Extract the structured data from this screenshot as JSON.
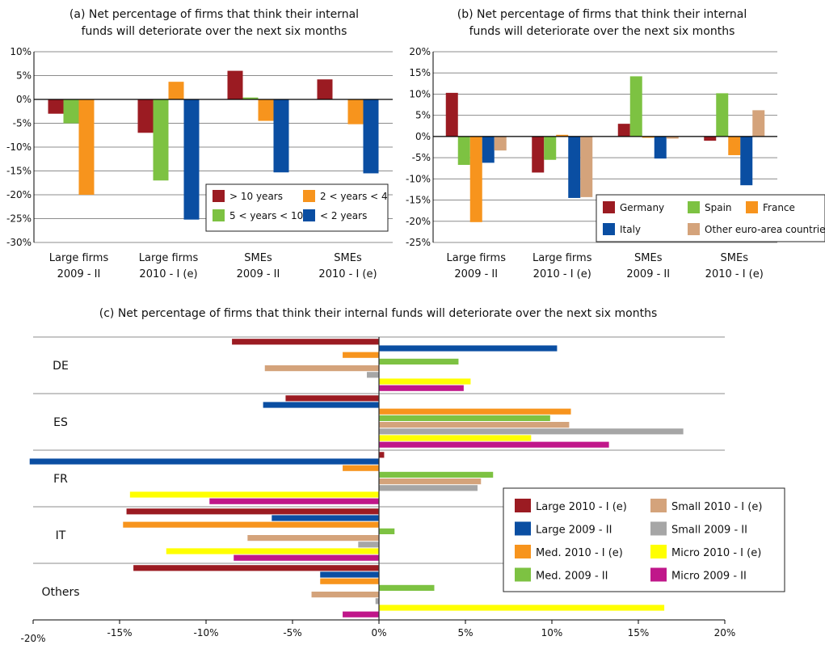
{
  "chart_data": [
    {
      "id": "a",
      "type": "bar",
      "title_lines": [
        "(a) Net percentage of firms that think their internal",
        "funds will deteriorate over the next six months"
      ],
      "categories": [
        [
          "Large firms",
          "2009 - II"
        ],
        [
          "Large firms",
          "2010 - I (e)"
        ],
        [
          "SMEs",
          "2009 - II"
        ],
        [
          "SMEs",
          "2010 - I (e)"
        ]
      ],
      "ylim": [
        -30,
        10
      ],
      "yticks": [
        10,
        5,
        0,
        -5,
        -10,
        -15,
        -20,
        -25,
        -30
      ],
      "ytick_labels": [
        "10%",
        "5%",
        "0%",
        "-5%",
        "-10%",
        "-15%",
        "-20%",
        "-25%",
        "-30%"
      ],
      "series": [
        {
          "name": "> 10 years",
          "color": "#9b1b22",
          "values": [
            -3,
            -7,
            6,
            4.2
          ]
        },
        {
          "name": "5 < years < 10",
          "color": "#7dc242",
          "values": [
            -5,
            -17,
            0.4,
            0
          ]
        },
        {
          "name": "2 < years < 4",
          "color": "#f7941d",
          "values": [
            -20,
            3.7,
            -4.5,
            -5.2
          ]
        },
        {
          "name": "< 2 years",
          "color": "#0a4ea2",
          "values": [
            0,
            -25.2,
            -15.3,
            -15.5
          ]
        }
      ],
      "legend_order": [
        0,
        2,
        1,
        3
      ]
    },
    {
      "id": "b",
      "type": "bar",
      "title_lines": [
        "(b) Net percentage of firms that think their internal",
        "funds will deteriorate over the next six months"
      ],
      "categories": [
        [
          "Large firms",
          "2009 - II"
        ],
        [
          "Large firms",
          "2010 - I (e)"
        ],
        [
          "SMEs",
          "2009 - II"
        ],
        [
          "SMEs",
          "2010 - I (e)"
        ]
      ],
      "ylim": [
        -25,
        20
      ],
      "yticks": [
        20,
        15,
        10,
        5,
        0,
        -5,
        -10,
        -15,
        -20,
        -25
      ],
      "ytick_labels": [
        "20%",
        "15%",
        "10%",
        "5%",
        "0%",
        "-5%",
        "-10%",
        "-15%",
        "-20%",
        "-25%"
      ],
      "series": [
        {
          "name": "Germany",
          "color": "#9b1b22",
          "values": [
            10.3,
            -8.5,
            3,
            -1
          ]
        },
        {
          "name": "Spain",
          "color": "#7dc242",
          "values": [
            -6.7,
            -5.5,
            14.2,
            10.2
          ]
        },
        {
          "name": "France",
          "color": "#f7941d",
          "values": [
            -20.2,
            0.4,
            -0.3,
            -4.4
          ]
        },
        {
          "name": "Italy",
          "color": "#0a4ea2",
          "values": [
            -6.2,
            -14.5,
            -5.2,
            -11.5
          ]
        },
        {
          "name": "Other euro-area countries",
          "color": "#d4a37b",
          "values": [
            -3.3,
            -14.3,
            -0.5,
            6.2
          ]
        }
      ]
    },
    {
      "id": "c",
      "type": "bar",
      "orientation": "horizontal",
      "title": "(c) Net percentage of firms that think their internal funds will deteriorate over the next six months",
      "categories": [
        "DE",
        "ES",
        "FR",
        "IT",
        "Others"
      ],
      "xlim": [
        -20,
        20
      ],
      "xticks": [
        -20,
        -15,
        -10,
        -5,
        0,
        5,
        10,
        15,
        20
      ],
      "xtick_labels": [
        "-20%",
        "-15%",
        "-10%",
        "-5%",
        "0%",
        "5%",
        "10%",
        "15%",
        "20%"
      ],
      "series": [
        {
          "name": "Large 2010 - I (e)",
          "color": "#9b1b22",
          "values": [
            -8.5,
            -5.4,
            0.3,
            -14.6,
            -14.2
          ]
        },
        {
          "name": "Large 2009 - II",
          "color": "#0a4ea2",
          "values": [
            10.3,
            -6.7,
            -20.2,
            -6.2,
            -3.4
          ]
        },
        {
          "name": "Med. 2010 - I (e)",
          "color": "#f7941d",
          "values": [
            -2.1,
            11.1,
            -2.1,
            -14.8,
            -3.4
          ]
        },
        {
          "name": "Med. 2009 - II",
          "color": "#7dc242",
          "values": [
            4.6,
            9.9,
            6.6,
            0.9,
            3.2
          ]
        },
        {
          "name": "Small 2010 - I (e)",
          "color": "#d4a37b",
          "values": [
            -6.6,
            11.0,
            5.9,
            -7.6,
            -3.9
          ]
        },
        {
          "name": "Small 2009 - II",
          "color": "#a6a6a6",
          "values": [
            -0.7,
            17.6,
            5.7,
            -1.2,
            -0.2
          ]
        },
        {
          "name": "Micro 2010 - I (e)",
          "color": "#ffff00",
          "values": [
            5.3,
            8.8,
            -14.4,
            -12.3,
            16.5
          ]
        },
        {
          "name": "Micro 2009 - II",
          "color": "#c0178a",
          "values": [
            4.9,
            13.3,
            -9.8,
            -8.4,
            -2.1
          ]
        }
      ],
      "legend_order": [
        0,
        4,
        1,
        5,
        2,
        6,
        3,
        7
      ]
    }
  ]
}
